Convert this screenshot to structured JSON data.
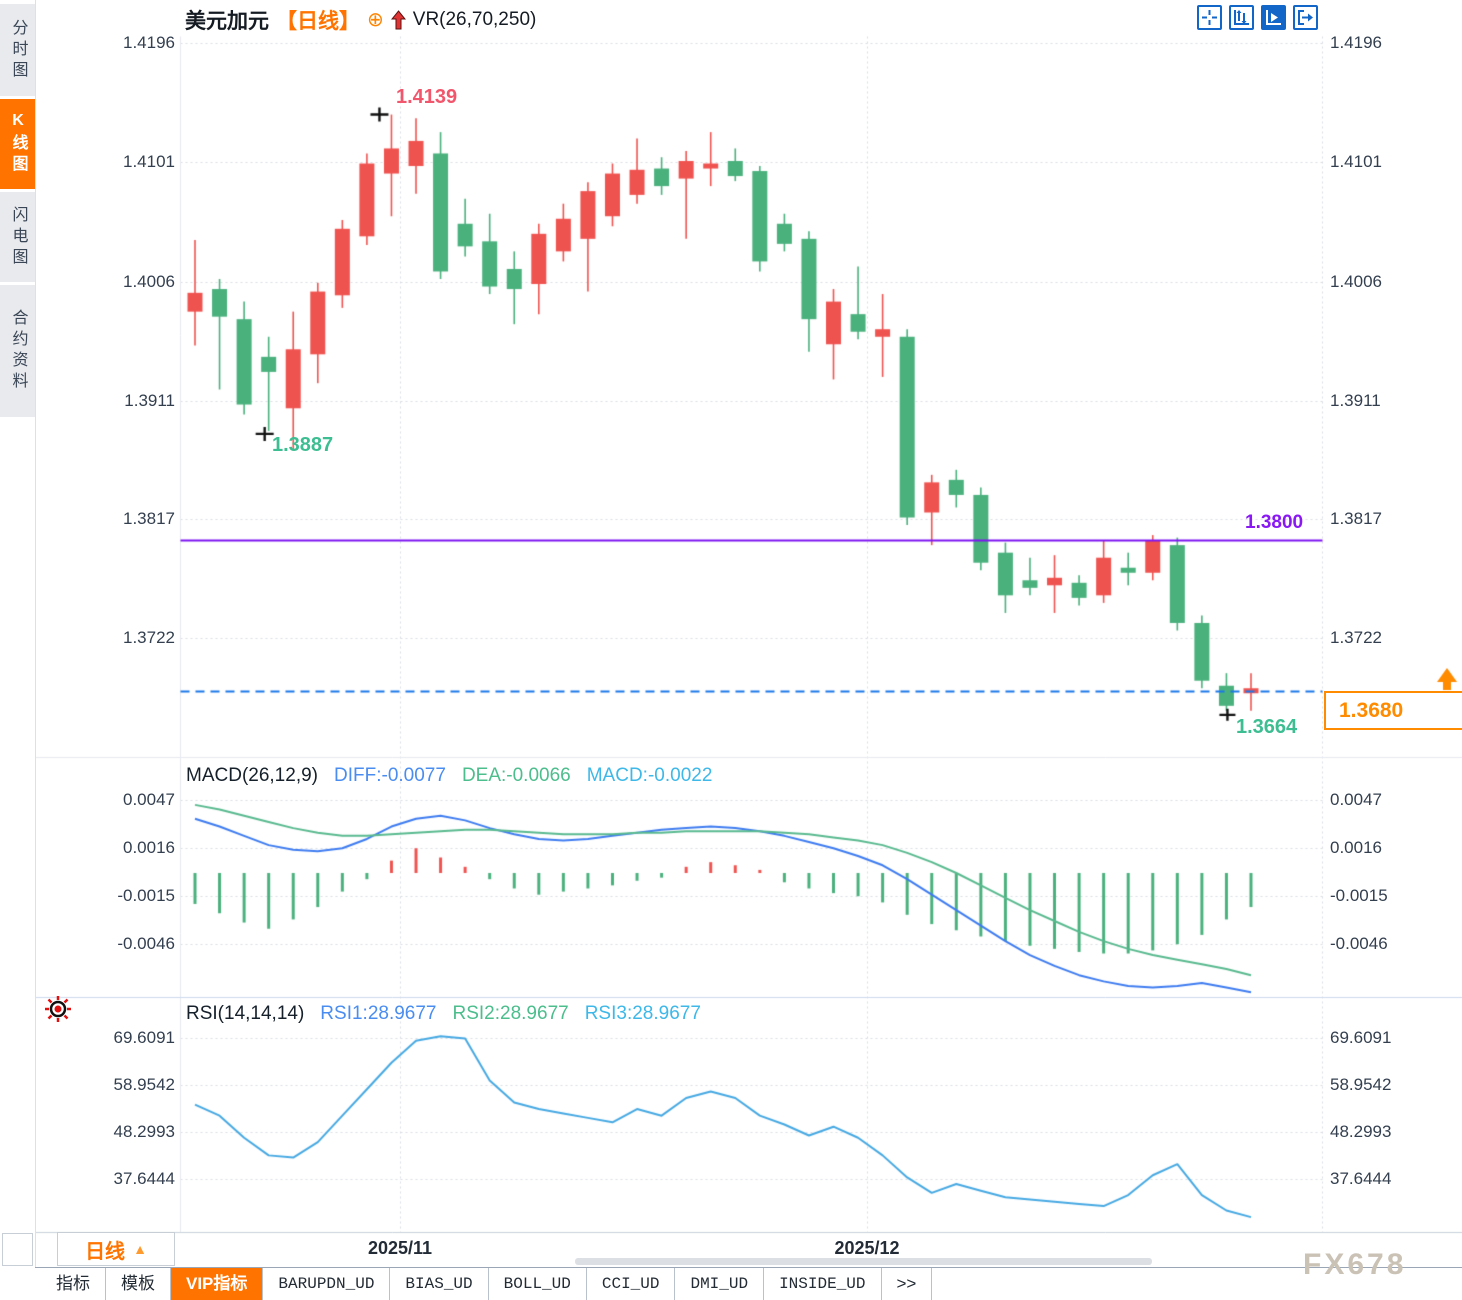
{
  "header": {
    "symbol": "美元加元",
    "period_tag": "【日线】",
    "plus_icon": "⊕",
    "indicator": "VR(26,70,250)"
  },
  "sidebar": {
    "items": [
      {
        "label": "分时图",
        "active": false
      },
      {
        "label": "K线图",
        "active": true
      },
      {
        "label": "闪电图",
        "active": false
      },
      {
        "label": "合约资料",
        "active": false
      }
    ]
  },
  "toolbar": {
    "icons": [
      "crosshair-icon",
      "axis-scale-icon",
      "axis-play-icon",
      "export-icon"
    ],
    "active_index": 2
  },
  "timeframe_button": {
    "label": "日线",
    "arrow": "▲"
  },
  "x_axis": {
    "labels": [
      {
        "text": "2025/11",
        "x": 400
      },
      {
        "text": "2025/12",
        "x": 867
      }
    ]
  },
  "bottom_tabs": [
    {
      "label": "指标",
      "active": false,
      "mono": false
    },
    {
      "label": "模板",
      "active": false,
      "mono": false
    },
    {
      "label": "VIP指标",
      "active": true,
      "mono": false
    },
    {
      "label": "BARUPDN_UD",
      "active": false,
      "mono": true
    },
    {
      "label": "BIAS_UD",
      "active": false,
      "mono": true
    },
    {
      "label": "BOLL_UD",
      "active": false,
      "mono": true
    },
    {
      "label": "CCI_UD",
      "active": false,
      "mono": true
    },
    {
      "label": "DMI_UD",
      "active": false,
      "mono": true
    },
    {
      "label": "INSIDE_UD",
      "active": false,
      "mono": true
    },
    {
      "label": ">>",
      "active": false,
      "mono": false
    }
  ],
  "watermark": "FX678",
  "annotations": {
    "high_label": "1.4139",
    "low_label": "1.3887",
    "support_label": "1.3800",
    "last_price_label": "1.3680",
    "last_low_label": "1.3664"
  },
  "colors": {
    "accent_orange": "#ff7400",
    "candle_up": "#ef5350",
    "candle_down": "#4ab17d",
    "macd_diff": "#3d7bf0",
    "macd_dea": "#58b98e",
    "bar_pos": "#ef5350",
    "bar_neg": "#4ab17d",
    "rsi_line": "#45a8e2",
    "support_purple": "#7d12f2",
    "price_blue": "#1b77e8",
    "label_green": "#3dbd92",
    "label_red": "#f2566c",
    "icon_blue": "#1266c8",
    "grid": "#d8dce3",
    "axis_text": "#333f4f"
  },
  "chart_data": [
    {
      "type": "candlestick",
      "title": "美元加元 日线 VR(26,70,250)",
      "y_ticks": [
        "1.4196",
        "1.4101",
        "1.4006",
        "1.3911",
        "1.3817",
        "1.3722"
      ],
      "x_tick_labels": [
        "2025/11",
        "2025/12"
      ],
      "ylim": [
        1.3635,
        1.4205
      ],
      "support_line": 1.38,
      "last_price_line": 1.368,
      "high_point": {
        "value": 1.4139,
        "index": 8
      },
      "low_point": {
        "value": 1.3887,
        "index": 3
      },
      "last_low_point": {
        "value": 1.3664,
        "index": 42
      },
      "candles_ohlc": [
        [
          1.3982,
          1.4039,
          1.3955,
          1.3997
        ],
        [
          1.4,
          1.4008,
          1.392,
          1.3978
        ],
        [
          1.3976,
          1.399,
          1.39,
          1.3908
        ],
        [
          1.3946,
          1.3962,
          1.3887,
          1.3934
        ],
        [
          1.3905,
          1.3982,
          1.3872,
          1.3952
        ],
        [
          1.3948,
          1.4005,
          1.3925,
          1.3998
        ],
        [
          1.3995,
          1.4055,
          1.3985,
          1.4048
        ],
        [
          1.4042,
          1.4108,
          1.4035,
          1.41
        ],
        [
          1.4092,
          1.4139,
          1.4058,
          1.4112
        ],
        [
          1.4098,
          1.4136,
          1.4076,
          1.4118
        ],
        [
          1.4108,
          1.4125,
          1.4008,
          1.4014
        ],
        [
          1.4052,
          1.4072,
          1.4026,
          1.4034
        ],
        [
          1.4038,
          1.406,
          1.3996,
          1.4002
        ],
        [
          1.4016,
          1.403,
          1.3972,
          1.4
        ],
        [
          1.4004,
          1.4052,
          1.398,
          1.4044
        ],
        [
          1.403,
          1.4068,
          1.4022,
          1.4056
        ],
        [
          1.404,
          1.4085,
          1.3998,
          1.4078
        ],
        [
          1.4058,
          1.41,
          1.405,
          1.4092
        ],
        [
          1.4075,
          1.412,
          1.4068,
          1.4095
        ],
        [
          1.4096,
          1.4105,
          1.4075,
          1.4082
        ],
        [
          1.4088,
          1.411,
          1.404,
          1.4102
        ],
        [
          1.4096,
          1.4125,
          1.4082,
          1.41
        ],
        [
          1.4102,
          1.4112,
          1.4086,
          1.409
        ],
        [
          1.4094,
          1.4098,
          1.4014,
          1.4022
        ],
        [
          1.4052,
          1.406,
          1.403,
          1.4036
        ],
        [
          1.404,
          1.4046,
          1.395,
          1.3976
        ],
        [
          1.3956,
          1.4,
          1.3928,
          1.399
        ],
        [
          1.398,
          1.4018,
          1.396,
          1.3966
        ],
        [
          1.3962,
          1.3996,
          1.393,
          1.3968
        ],
        [
          1.3962,
          1.3968,
          1.3812,
          1.3818
        ],
        [
          1.3822,
          1.3852,
          1.3796,
          1.3846
        ],
        [
          1.3848,
          1.3856,
          1.3826,
          1.3836
        ],
        [
          1.3836,
          1.3842,
          1.3776,
          1.3782
        ],
        [
          1.379,
          1.3798,
          1.3742,
          1.3756
        ],
        [
          1.3768,
          1.3786,
          1.3756,
          1.3762
        ],
        [
          1.3764,
          1.3788,
          1.3742,
          1.377
        ],
        [
          1.3766,
          1.3772,
          1.3748,
          1.3754
        ],
        [
          1.3756,
          1.38,
          1.375,
          1.3786
        ],
        [
          1.3778,
          1.379,
          1.3764,
          1.3774
        ],
        [
          1.3774,
          1.3804,
          1.3768,
          1.38
        ],
        [
          1.3796,
          1.3802,
          1.3728,
          1.3734
        ],
        [
          1.3734,
          1.374,
          1.3682,
          1.3688
        ],
        [
          1.3684,
          1.3694,
          1.3664,
          1.3668
        ],
        [
          1.3678,
          1.3694,
          1.3664,
          1.3682
        ]
      ]
    },
    {
      "type": "macd",
      "title": "MACD(26,12,9)",
      "value_labels": {
        "diff": "DIFF:-0.0077",
        "dea": "DEA:-0.0066",
        "macd": "MACD:-0.0022"
      },
      "y_ticks": [
        "0.0047",
        "0.0016",
        "-0.0015",
        "-0.0046"
      ],
      "series": [
        {
          "name": "DIFF",
          "values": [
            0.0035,
            0.003,
            0.0024,
            0.0018,
            0.0015,
            0.0014,
            0.0016,
            0.0022,
            0.003,
            0.0035,
            0.0037,
            0.0034,
            0.0029,
            0.0025,
            0.0022,
            0.0021,
            0.0022,
            0.0024,
            0.0026,
            0.0028,
            0.0029,
            0.003,
            0.0029,
            0.0027,
            0.0024,
            0.002,
            0.0016,
            0.0011,
            0.0005,
            -0.0004,
            -0.0014,
            -0.0024,
            -0.0034,
            -0.0044,
            -0.0053,
            -0.006,
            -0.0066,
            -0.007,
            -0.0073,
            -0.0074,
            -0.0073,
            -0.0071,
            -0.0074,
            -0.0077
          ]
        },
        {
          "name": "DEA",
          "values": [
            0.0044,
            0.0041,
            0.0037,
            0.0033,
            0.0029,
            0.0026,
            0.0024,
            0.0024,
            0.0025,
            0.0026,
            0.0027,
            0.0028,
            0.0028,
            0.0027,
            0.0026,
            0.0025,
            0.0025,
            0.0025,
            0.0026,
            0.0026,
            0.0027,
            0.0027,
            0.0027,
            0.0027,
            0.0026,
            0.0025,
            0.0023,
            0.0021,
            0.0018,
            0.0013,
            0.0007,
            0.0,
            -0.0008,
            -0.0016,
            -0.0024,
            -0.0031,
            -0.0038,
            -0.0044,
            -0.0049,
            -0.0053,
            -0.0056,
            -0.0059,
            -0.0062,
            -0.0066
          ]
        }
      ],
      "histogram": [
        -0.002,
        -0.0026,
        -0.0032,
        -0.0036,
        -0.003,
        -0.0022,
        -0.0012,
        -0.0004,
        0.0008,
        0.0016,
        0.001,
        0.0004,
        -0.0004,
        -0.001,
        -0.0014,
        -0.0012,
        -0.001,
        -0.0008,
        -0.0005,
        -0.0003,
        0.0004,
        0.0007,
        0.0005,
        0.0002,
        -0.0006,
        -0.001,
        -0.0013,
        -0.0015,
        -0.0019,
        -0.0027,
        -0.0033,
        -0.0037,
        -0.0041,
        -0.0044,
        -0.0047,
        -0.0049,
        -0.0051,
        -0.0052,
        -0.0052,
        -0.005,
        -0.0046,
        -0.004,
        -0.003,
        -0.0022
      ]
    },
    {
      "type": "rsi",
      "title": "RSI(14,14,14)",
      "value_labels": {
        "rsi1": "RSI1:28.9677",
        "rsi2": "RSI2:28.9677",
        "rsi3": "RSI3:28.9677"
      },
      "y_ticks": [
        "69.6091",
        "58.9542",
        "48.2993",
        "37.6444"
      ],
      "values": [
        54.5,
        52,
        47,
        43,
        42.5,
        46,
        52,
        58,
        64,
        69,
        70,
        69.5,
        60,
        55,
        53.5,
        52.5,
        51.5,
        50.5,
        53.5,
        52,
        56,
        57.5,
        56,
        52,
        50,
        47.5,
        49.5,
        47,
        43,
        38,
        34.5,
        36.5,
        35,
        33.5,
        33,
        32.5,
        32,
        31.5,
        34,
        38.5,
        41,
        34,
        30.5,
        29
      ]
    }
  ]
}
